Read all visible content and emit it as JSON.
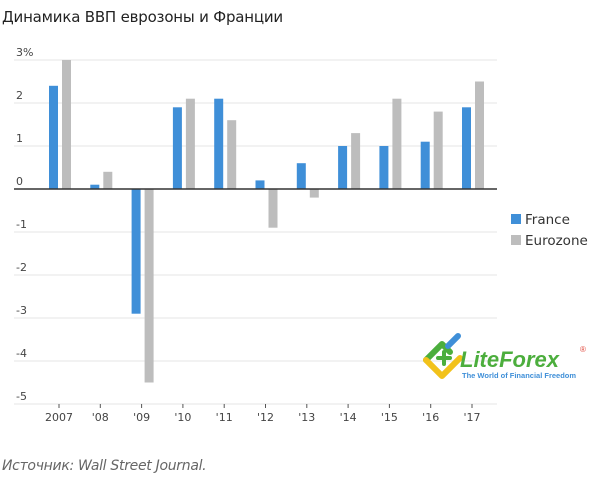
{
  "title": "Динамика ВВП еврозоны и Франции",
  "source": "Источник: Wall Street Journal.",
  "logo": {
    "name": "LiteForex",
    "tagline": "The World of Financial Freedom",
    "registered": "®"
  },
  "chart_data": {
    "type": "bar",
    "title": "Динамика ВВП еврозоны и Франции",
    "xlabel": "",
    "ylabel": "",
    "categories": [
      "2007",
      "'08",
      "'09",
      "'10",
      "'11",
      "'12",
      "'13",
      "'14",
      "'15",
      "'16",
      "'17"
    ],
    "series": [
      {
        "name": "France",
        "color": "#3f8fd8",
        "values": [
          2.4,
          0.1,
          -2.9,
          1.9,
          2.1,
          0.2,
          0.6,
          1.0,
          1.0,
          1.1,
          1.9
        ]
      },
      {
        "name": "Eurozone",
        "color": "#bdbdbd",
        "values": [
          3.0,
          0.4,
          -4.5,
          2.1,
          1.6,
          -0.9,
          -0.2,
          1.3,
          2.1,
          1.8,
          2.5
        ]
      }
    ],
    "yticks": [
      3,
      2,
      1,
      0,
      -1,
      -2,
      -3,
      -4,
      -5
    ],
    "ytick_labels": [
      "3%",
      "2",
      "1",
      "0",
      "-1",
      "-2",
      "-3",
      "-4",
      "-5"
    ],
    "ylim": [
      -5,
      3
    ],
    "grid": true,
    "legend": {
      "position": "right",
      "entries": [
        "France",
        "Eurozone"
      ]
    }
  }
}
